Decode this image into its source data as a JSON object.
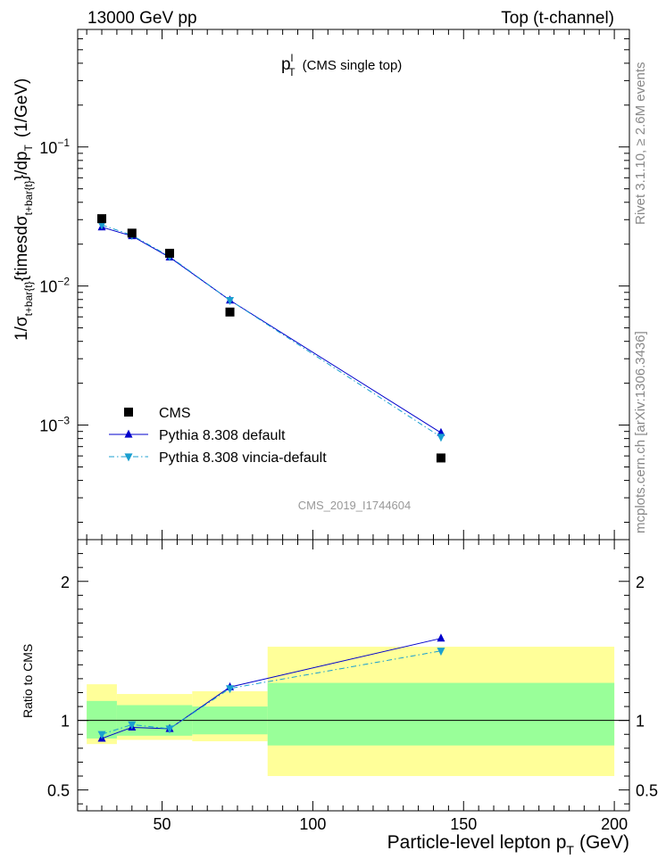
{
  "header": {
    "left": "13000 GeV pp",
    "right": "Top (t-channel)"
  },
  "side_text": {
    "rivet": "Rivet 3.1.10, ≥ 2.6M events",
    "mcplots": "mcplots.cern.ch [arXiv:1306.3436]"
  },
  "plot_title": {
    "main": "p",
    "sup": "l",
    "sub": "T",
    "suffix": "(CMS single top)"
  },
  "analysis_id": "CMS_2019_I1744604",
  "chart_data": [
    {
      "type": "scatter",
      "panel": "main",
      "yscale": "log",
      "xlim": [
        22,
        205
      ],
      "ylim": [
        0.00015,
        0.7
      ],
      "ylabel": "1/σ_{t+bar{t}}{timesdσ_{t+bar{t}}}/dp_T (1/GeV)",
      "ylabel_parts": {
        "a": "1/σ",
        "a_sub": "t+bar{t}",
        "b": "{timesdσ",
        "b_sub": "t+bar{t}",
        "c": "}/dp",
        "c_sub": "T",
        "d": "(1/GeV)"
      },
      "yticks": [
        {
          "value": 0.001,
          "mant": "10",
          "exp": "−3"
        },
        {
          "value": 0.01,
          "mant": "10",
          "exp": "−2"
        },
        {
          "value": 0.1,
          "mant": "10",
          "exp": "−1"
        }
      ],
      "legend_position": "bottom-left",
      "series": [
        {
          "name": "CMS",
          "style": "square",
          "color": "#000000",
          "x": [
            30,
            40,
            52.5,
            72.5,
            142.5
          ],
          "y": [
            0.0305,
            0.024,
            0.0172,
            0.0065,
            0.00058
          ]
        },
        {
          "name": "Pythia 8.308 default",
          "style": "triangle-up",
          "line": "solid",
          "color": "#0000cc",
          "x": [
            30,
            40,
            52.5,
            72.5,
            142.5
          ],
          "y": [
            0.0265,
            0.0229,
            0.0161,
            0.0079,
            0.00088
          ]
        },
        {
          "name": "Pythia 8.308 vincia-default",
          "style": "triangle-down",
          "line": "dashdot",
          "color": "#1a9fd0",
          "x": [
            30,
            40,
            52.5,
            72.5,
            142.5
          ],
          "y": [
            0.0275,
            0.0232,
            0.0163,
            0.0079,
            0.00082
          ]
        }
      ]
    },
    {
      "type": "line",
      "panel": "ratio",
      "xlabel_parts": {
        "main": "Particle-level lepton p",
        "sub": "T",
        "unit": "(GeV)"
      },
      "ylabel": "Ratio to CMS",
      "xlim": [
        22,
        205
      ],
      "ylim": [
        0.35,
        2.3
      ],
      "xticks": [
        50,
        100,
        150,
        200
      ],
      "yticks": [
        0.5,
        1,
        2
      ],
      "bands": [
        {
          "x": [
            25,
            35
          ],
          "green": [
            0.87,
            1.14
          ],
          "yellow": [
            0.83,
            1.26
          ]
        },
        {
          "x": [
            35,
            60
          ],
          "green": [
            0.89,
            1.11
          ],
          "yellow": [
            0.86,
            1.19
          ]
        },
        {
          "x": [
            60,
            85
          ],
          "green": [
            0.9,
            1.1
          ],
          "yellow": [
            0.85,
            1.21
          ]
        },
        {
          "x": [
            85,
            200
          ],
          "green": [
            0.82,
            1.27
          ],
          "yellow": [
            0.6,
            1.53
          ]
        }
      ],
      "series": [
        {
          "name": "Pythia 8.308 default",
          "color": "#0000cc",
          "x": [
            30,
            40,
            52.5,
            72.5,
            142.5
          ],
          "y": [
            0.87,
            0.95,
            0.94,
            1.24,
            1.59
          ]
        },
        {
          "name": "Pythia 8.308 vincia-default",
          "color": "#1a9fd0",
          "x": [
            30,
            40,
            52.5,
            72.5,
            142.5
          ],
          "y": [
            0.9,
            0.97,
            0.94,
            1.23,
            1.5
          ]
        }
      ]
    }
  ]
}
